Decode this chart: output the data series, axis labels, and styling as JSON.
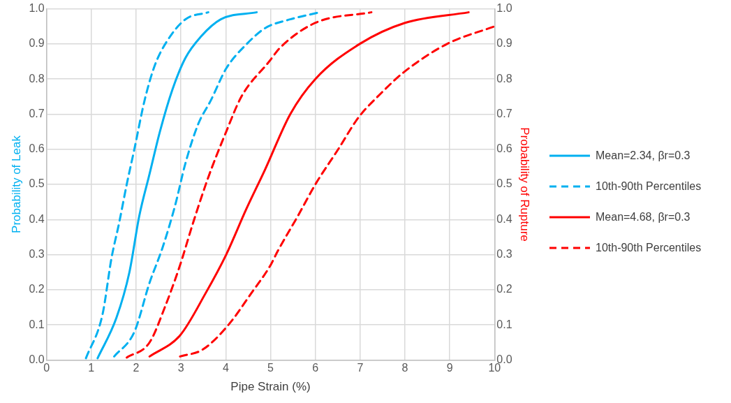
{
  "chart_data": {
    "type": "line",
    "xlabel": "Pipe Strain (%)",
    "ylabel": "Probability of Leak",
    "y2label": "Probability of Rupture",
    "xlim": [
      0,
      10
    ],
    "xticks": [
      0,
      1,
      2,
      3,
      4,
      5,
      6,
      7,
      8,
      9,
      10
    ],
    "ylim": [
      0,
      1
    ],
    "yticks": [
      {
        "value": 0,
        "label": "0.0"
      },
      0.1,
      0.2,
      0.3,
      0.4,
      0.5,
      0.6,
      0.7,
      0.8,
      0.9,
      {
        "value": 1,
        "label": "1.0"
      }
    ],
    "y2lim": [
      0,
      1
    ],
    "y2ticks": [
      {
        "value": 0,
        "label": "0.0"
      },
      0.1,
      0.2,
      0.3,
      0.4,
      0.5,
      0.6,
      0.7,
      0.8,
      0.9,
      {
        "value": 1,
        "label": "1.0"
      }
    ],
    "grid": true,
    "legend": "right",
    "marker": "none",
    "series": [
      {
        "name": "Mean=2.34, βr=0.3",
        "color": "#00b0f0",
        "line_style": "solid",
        "x": [
          1.14,
          1.56,
          1.85,
          2.07,
          2.3,
          2.53,
          2.81,
          3.1,
          3.44,
          3.89,
          4.69
        ],
        "values": [
          0.005,
          0.12,
          0.25,
          0.41,
          0.53,
          0.65,
          0.77,
          0.86,
          0.92,
          0.97,
          0.99
        ]
      },
      {
        "name": "10th-90th Percentiles",
        "color": "#00b0f0",
        "line_style": "dashed",
        "x": [
          0.88,
          1.25,
          1.45,
          1.62,
          1.79,
          1.96,
          2.19,
          2.42,
          2.7,
          3.1,
          3.61
        ],
        "values": [
          0.005,
          0.13,
          0.29,
          0.39,
          0.5,
          0.6,
          0.74,
          0.84,
          0.91,
          0.97,
          0.99
        ]
      },
      {
        "color": "#00b0f0",
        "line_style": "dashed",
        "x": [
          1.51,
          1.96,
          2.3,
          2.59,
          2.87,
          3.1,
          3.38,
          3.67,
          4.01,
          4.47,
          4.88,
          5.44,
          6.1
        ],
        "values": [
          0.01,
          0.08,
          0.22,
          0.32,
          0.44,
          0.56,
          0.67,
          0.74,
          0.83,
          0.9,
          0.945,
          0.97,
          0.99
        ]
      },
      {
        "name": "Mean=4.68, βr=0.3",
        "color": "#ff0000",
        "line_style": "solid",
        "axis": "y2",
        "x": [
          2.3,
          2.98,
          3.55,
          4.01,
          4.46,
          4.87,
          5.44,
          6.0,
          6.99,
          8.0,
          9.42
        ],
        "values": [
          0.01,
          0.07,
          0.19,
          0.3,
          0.43,
          0.54,
          0.7,
          0.8,
          0.9,
          0.96,
          0.99
        ]
      },
      {
        "name": "10th-90th Percentiles",
        "color": "#ff0000",
        "line_style": "dashed",
        "axis": "y2",
        "x": [
          1.79,
          2.3,
          2.64,
          2.98,
          3.27,
          3.61,
          4.01,
          4.35,
          4.97,
          5.22,
          6.0,
          7.25
        ],
        "values": [
          0.007,
          0.05,
          0.15,
          0.27,
          0.39,
          0.52,
          0.65,
          0.75,
          0.85,
          0.89,
          0.96,
          0.99
        ]
      },
      {
        "color": "#ff0000",
        "line_style": "dashed",
        "axis": "y2",
        "x": [
          2.98,
          3.49,
          4.06,
          4.57,
          5.0,
          5.16,
          5.61,
          6.0,
          6.51,
          6.96,
          7.47,
          7.98,
          8.94,
          10.0
        ],
        "values": [
          0.01,
          0.03,
          0.1,
          0.19,
          0.27,
          0.31,
          0.41,
          0.5,
          0.6,
          0.69,
          0.76,
          0.82,
          0.9,
          0.95
        ]
      }
    ]
  }
}
